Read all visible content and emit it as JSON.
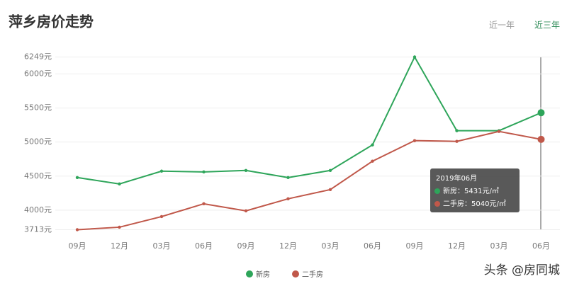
{
  "chart_data": {
    "type": "line",
    "title": "萍乡房价走势",
    "tabs": [
      "近一年",
      "近三年"
    ],
    "categories": [
      "09月",
      "12月",
      "03月",
      "06月",
      "09月",
      "12月",
      "03月",
      "06月",
      "09月",
      "12月",
      "03月",
      "06月"
    ],
    "series": [
      {
        "name": "新房",
        "color": "#2ea55a",
        "values": [
          4479,
          4385,
          4573,
          4562,
          4583,
          4479,
          4583,
          4958,
          6249,
          5167,
          5167,
          5431
        ]
      },
      {
        "name": "二手房",
        "color": "#c0584a",
        "values": [
          3713,
          3750,
          3906,
          4094,
          3990,
          4167,
          4302,
          4719,
          5021,
          5010,
          5156,
          5040
        ]
      }
    ],
    "ylim": [
      3713,
      6249
    ],
    "yticks": [
      {
        "value": 3713,
        "label": "3713元"
      },
      {
        "value": 4000,
        "label": "4000元"
      },
      {
        "value": 4500,
        "label": "4500元"
      },
      {
        "value": 5000,
        "label": "5000元"
      },
      {
        "value": 5500,
        "label": "5500元"
      },
      {
        "value": 6000,
        "label": "6000元"
      },
      {
        "value": 6249,
        "label": "6249元"
      }
    ],
    "grid": true,
    "tooltip": {
      "title": "2019年06月",
      "items": [
        "新房：5431元/㎡",
        "二手房：5040元/㎡"
      ]
    },
    "watermark": "头条 @房同城"
  }
}
